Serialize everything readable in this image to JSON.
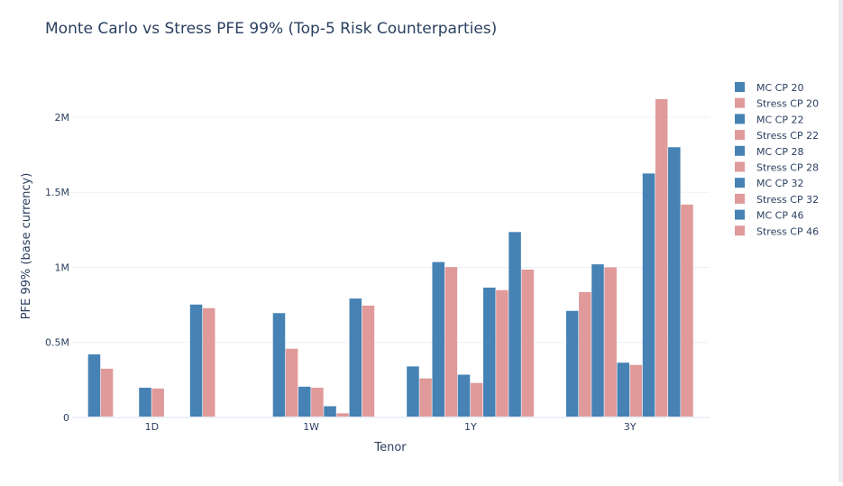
{
  "chart_data": {
    "type": "bar",
    "title": "Monte Carlo vs Stress PFE 99% (Top-5 Risk Counterparties)",
    "xlabel": "Tenor",
    "ylabel": "PFE 99% (base currency)",
    "categories": [
      "1D",
      "1W",
      "1Y",
      "3Y"
    ],
    "ylim": [
      0,
      2300000
    ],
    "yticks": [
      0,
      500000,
      1000000,
      1500000,
      2000000
    ],
    "ytick_labels": [
      "0",
      "0.5M",
      "1M",
      "1.5M",
      "2M"
    ],
    "grid": true,
    "legend_position": "right",
    "series": [
      {
        "name": "MC CP 20",
        "color": "#4682b4",
        "values": [
          420000,
          0,
          340000,
          710000
        ]
      },
      {
        "name": "Stress CP 20",
        "color": "#e09a9a",
        "values": [
          325000,
          0,
          260000,
          835000
        ]
      },
      {
        "name": "MC CP 22",
        "color": "#4682b4",
        "values": [
          0,
          695000,
          1035000,
          1020000
        ]
      },
      {
        "name": "Stress CP 22",
        "color": "#e09a9a",
        "values": [
          0,
          458000,
          1002000,
          1000000
        ]
      },
      {
        "name": "MC CP 28",
        "color": "#4682b4",
        "values": [
          198000,
          205000,
          285000,
          365000
        ]
      },
      {
        "name": "Stress CP 28",
        "color": "#e09a9a",
        "values": [
          193000,
          198000,
          230000,
          350000
        ]
      },
      {
        "name": "MC CP 32",
        "color": "#4682b4",
        "values": [
          0,
          75000,
          865000,
          1625000
        ]
      },
      {
        "name": "Stress CP 32",
        "color": "#e09a9a",
        "values": [
          0,
          28000,
          848000,
          2120000
        ]
      },
      {
        "name": "MC CP 46",
        "color": "#4682b4",
        "values": [
          752000,
          792000,
          1235000,
          1800000
        ]
      },
      {
        "name": "Stress CP 46",
        "color": "#e09a9a",
        "values": [
          728000,
          745000,
          985000,
          1418000
        ]
      }
    ]
  }
}
